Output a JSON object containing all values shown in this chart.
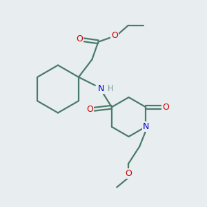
{
  "background_color": "#e8edf0",
  "bond_color": "#4a7a6a",
  "oxygen_color": "#cc0000",
  "nitrogen_color": "#0000cc",
  "hydrogen_color": "#7a9a9a",
  "line_width": 1.6,
  "figsize": [
    3.0,
    3.0
  ],
  "dpi": 100,
  "xlim": [
    0,
    10
  ],
  "ylim": [
    0,
    10
  ]
}
